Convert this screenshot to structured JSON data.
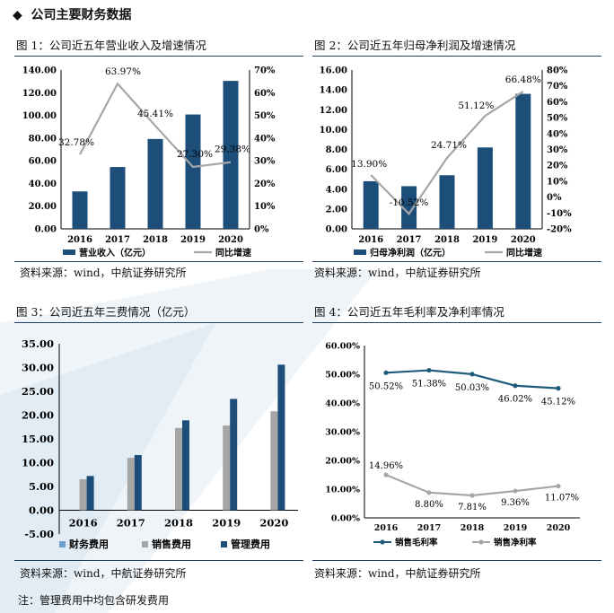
{
  "section_title": "公司主要财务数据",
  "note": "注：管理费用中均包含研发费用",
  "colors": {
    "navy": "#1d4e79",
    "gray": "#a6a6a6",
    "rule": "#1f3f63",
    "teal": "#1f5b7a"
  },
  "figures": [
    {
      "title": "图 1：公司近五年营业收入及增速情况",
      "source": "资料来源：wind，中航证券研究所"
    },
    {
      "title": "图 2：公司近五年归母净利润及增速情况",
      "source": "资料来源：wind，中航证券研究所"
    },
    {
      "title": "图 3：公司近五年三费情况（亿元）",
      "source": "资料来源：wind，中航证券研究所"
    },
    {
      "title": "图 4：公司近五年毛利率及净利率情况",
      "source": "资料来源：wind，中航证券研究所"
    }
  ],
  "chart_data": [
    {
      "type": "bar",
      "categories": [
        "2016",
        "2017",
        "2018",
        "2019",
        "2020"
      ],
      "series": [
        {
          "name": "营业收入（亿元）",
          "type": "bar",
          "values": [
            33.0,
            54.5,
            79.2,
            100.8,
            130.4
          ],
          "axis": "left"
        },
        {
          "name": "同比增速",
          "type": "line",
          "values": [
            32.78,
            63.97,
            45.41,
            27.3,
            29.38
          ],
          "labels": [
            "32.78%",
            "63.97%",
            "45.41%",
            "27.30%",
            "29.38%"
          ],
          "axis": "right"
        }
      ],
      "left_axis": {
        "ylim": [
          0,
          140
        ],
        "ticks": [
          "0.00",
          "20.00",
          "40.00",
          "60.00",
          "80.00",
          "100.00",
          "120.00",
          "140.00"
        ]
      },
      "right_axis": {
        "ylim": [
          0,
          70
        ],
        "ticks": [
          "0%",
          "10%",
          "20%",
          "30%",
          "40%",
          "50%",
          "60%",
          "70%"
        ]
      },
      "legend": "bottom"
    },
    {
      "type": "bar",
      "categories": [
        "2016",
        "2017",
        "2018",
        "2019",
        "2020"
      ],
      "series": [
        {
          "name": "归母净利润（亿元）",
          "type": "bar",
          "values": [
            4.8,
            4.3,
            5.4,
            8.2,
            13.6
          ],
          "axis": "left"
        },
        {
          "name": "同比增速",
          "type": "line",
          "values": [
            13.9,
            -10.52,
            24.71,
            51.12,
            66.48
          ],
          "labels": [
            "13.90%",
            "-10.52%",
            "24.71%",
            "51.12%",
            "66.48%"
          ],
          "axis": "right"
        }
      ],
      "left_axis": {
        "ylim": [
          0,
          16
        ],
        "ticks": [
          "0.00",
          "2.00",
          "4.00",
          "6.00",
          "8.00",
          "10.00",
          "12.00",
          "14.00",
          "16.00"
        ]
      },
      "right_axis": {
        "ylim": [
          -20,
          80
        ],
        "ticks": [
          "-20%",
          "-10%",
          "0%",
          "10%",
          "20%",
          "30%",
          "40%",
          "50%",
          "60%",
          "70%",
          "80%"
        ]
      },
      "legend": "bottom"
    },
    {
      "type": "bar",
      "categories": [
        "2016",
        "2017",
        "2018",
        "2019",
        "2020"
      ],
      "series": [
        {
          "name": "财务费用",
          "values": [
            0.0,
            0.0,
            0.0,
            0.0,
            0.0
          ]
        },
        {
          "name": "销售费用",
          "values": [
            6.5,
            11.0,
            17.3,
            17.8,
            20.8
          ]
        },
        {
          "name": "管理费用",
          "values": [
            7.2,
            11.6,
            18.9,
            23.4,
            30.6
          ]
        }
      ],
      "ylim": [
        -5,
        35
      ],
      "ticks": [
        "-5.00",
        "0.00",
        "5.00",
        "10.00",
        "15.00",
        "20.00",
        "25.00",
        "30.00",
        "35.00"
      ],
      "legend": "bottom"
    },
    {
      "type": "line",
      "categories": [
        "2016",
        "2017",
        "2018",
        "2019",
        "2020"
      ],
      "series": [
        {
          "name": "销售毛利率",
          "values": [
            50.52,
            51.38,
            50.03,
            46.02,
            45.12
          ],
          "labels": [
            "50.52%",
            "51.38%",
            "50.03%",
            "46.02%",
            "45.12%"
          ]
        },
        {
          "name": "销售净利率",
          "values": [
            14.96,
            8.8,
            7.81,
            9.36,
            11.07
          ],
          "labels": [
            "14.96%",
            "8.80%",
            "7.81%",
            "9.36%",
            "11.07%"
          ]
        }
      ],
      "ylim": [
        0,
        60
      ],
      "ticks": [
        "0.00%",
        "10.00%",
        "20.00%",
        "30.00%",
        "40.00%",
        "50.00%",
        "60.00%"
      ],
      "legend": "bottom"
    }
  ]
}
